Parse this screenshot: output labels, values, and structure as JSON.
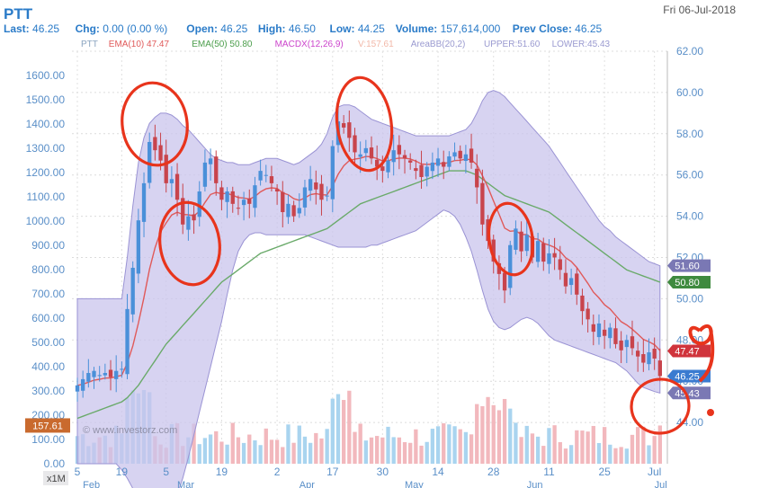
{
  "header": {
    "symbol": "PTT",
    "date": "Fri 06-Jul-2018",
    "stats": [
      {
        "label": "Last:",
        "value": "46.25"
      },
      {
        "label": "Chg:",
        "value": "0.00 (0.00 %)"
      },
      {
        "label": "Open:",
        "value": "46.25"
      },
      {
        "label": "High:",
        "value": "46.50"
      },
      {
        "label": "Low:",
        "value": "44.25"
      },
      {
        "label": "Volume:",
        "value": "157,614,000"
      },
      {
        "label": "Prev Close:",
        "value": "46.25"
      }
    ]
  },
  "legend": [
    {
      "label": "PTT",
      "value": "",
      "color": "#8aa4c0"
    },
    {
      "label": "EMA(10)",
      "value": "47.47",
      "color": "#e05a5a"
    },
    {
      "label": "EMA(50)",
      "value": "50.80",
      "color": "#4c9e4c"
    },
    {
      "label": "MACDX(12,26,9)",
      "value": "",
      "color": "#cc44cc"
    },
    {
      "label": "V:157.61",
      "value": "",
      "color": "#f2b8a8"
    },
    {
      "label": "AreaBB(20,2)",
      "value": "",
      "color": "#9a9ad0"
    },
    {
      "label": "UPPER:51.60",
      "value": "",
      "color": "#9a9ad0"
    },
    {
      "label": "LOWER:45.43",
      "value": "",
      "color": "#9a9ad0"
    }
  ],
  "watermark": "© www.investorz.com",
  "period_label": "x1M",
  "colors": {
    "up": "#4a90d9",
    "down": "#c8444c",
    "vol_up": "#a9d4ef",
    "vol_down": "#f2b8bd",
    "bb_fill": "#c9c4ec",
    "bb_line": "#9a93d4",
    "ema10": "#e05a5a",
    "ema50": "#6aaa6a",
    "annotation": "#e8341c"
  },
  "chart_data": {
    "type": "candlestick",
    "price_axis": {
      "side": "right",
      "min": 42,
      "max": 62,
      "ticks": [
        "44.00",
        "46.00",
        "48.00",
        "50.00",
        "52.00",
        "54.00",
        "56.00",
        "58.00",
        "60.00",
        "62.00"
      ]
    },
    "volume_axis": {
      "side": "left",
      "min": 0,
      "max": 1700,
      "ticks": [
        "0.00",
        "100.00",
        "200.00",
        "300.00",
        "400.00",
        "500.00",
        "600.00",
        "700.00",
        "800.00",
        "900.00",
        "1000.00",
        "1100.00",
        "1200.00",
        "1300.00",
        "1400.00",
        "1500.00",
        "1600.00"
      ]
    },
    "x_ticks": [
      {
        "label": "5",
        "i": 0
      },
      {
        "label": "19",
        "i": 8
      },
      {
        "label": "5",
        "i": 16
      },
      {
        "label": "19",
        "i": 26
      },
      {
        "label": "2",
        "i": 36
      },
      {
        "label": "17",
        "i": 46
      },
      {
        "label": "30",
        "i": 55
      },
      {
        "label": "14",
        "i": 65
      },
      {
        "label": "28",
        "i": 75
      },
      {
        "label": "11",
        "i": 85
      },
      {
        "label": "25",
        "i": 95
      },
      {
        "label": "Jul",
        "i": 104
      }
    ],
    "month_labels": [
      {
        "label": "Feb",
        "i": 1
      },
      {
        "label": "Mar",
        "i": 18
      },
      {
        "label": "Apr",
        "i": 40
      },
      {
        "label": "May",
        "i": 59
      },
      {
        "label": "Jun",
        "i": 81
      },
      {
        "label": "Jul",
        "i": 104
      }
    ],
    "badges": [
      {
        "label": "51.60",
        "value": 51.6,
        "color": "#7a78b4"
      },
      {
        "label": "50.80",
        "value": 50.8,
        "color": "#3f8a3f"
      },
      {
        "label": "47.47",
        "value": 47.47,
        "color": "#d0343c"
      },
      {
        "label": "46.25",
        "value": 46.25,
        "color": "#3a7bd0"
      },
      {
        "label": "45.43",
        "value": 45.43,
        "color": "#7a78b4"
      }
    ],
    "volume_badge": {
      "label": "157.61",
      "value": 157.61,
      "color": "#c96a2e"
    },
    "close": [
      45.8,
      46.1,
      46.4,
      46.5,
      46.3,
      46.4,
      46.2,
      46.5,
      46.6,
      49.5,
      51.5,
      53.8,
      55.6,
      57.6,
      57.2,
      56.7,
      55.6,
      55.8,
      54.8,
      53.6,
      54.0,
      53.8,
      55.2,
      56.6,
      56.8,
      55.6,
      54.8,
      55.2,
      54.6,
      54.4,
      54.8,
      54.6,
      55.5,
      56.2,
      56.0,
      55.6,
      55.2,
      54.2,
      54.6,
      54.0,
      54.4,
      55.4,
      55.8,
      55.3,
      54.8,
      55.0,
      57.4,
      58.6,
      58.3,
      57.8,
      57.1,
      57.0,
      57.3,
      56.8,
      56.4,
      56.2,
      56.7,
      57.2,
      57.0,
      56.8,
      56.6,
      56.2,
      55.9,
      56.4,
      56.6,
      56.8,
      56.4,
      56.9,
      57.1,
      56.8,
      57.0,
      56.6,
      55.4,
      53.6,
      52.8,
      51.8,
      51.2,
      50.4,
      52.6,
      53.4,
      52.3,
      53.1,
      52.0,
      52.8,
      51.8,
      52.2,
      52.0,
      51.4,
      50.6,
      51.0,
      50.2,
      49.4,
      49.0,
      48.4,
      48.8,
      48.2,
      48.6,
      47.8,
      47.5,
      48.0,
      47.6,
      47.2,
      46.9,
      47.4,
      47.1,
      46.25
    ],
    "upper": [
      50.0,
      50.0,
      50.0,
      50.0,
      50.0,
      50.0,
      50.0,
      50.0,
      50.0,
      52.0,
      54.5,
      56.6,
      57.8,
      58.5,
      58.8,
      59.0,
      59.0,
      58.9,
      58.7,
      58.4,
      58.2,
      57.9,
      57.6,
      57.3,
      57.0,
      56.8,
      56.7,
      56.6,
      56.6,
      56.5,
      56.5,
      56.5,
      56.6,
      56.7,
      56.8,
      56.8,
      56.8,
      56.7,
      56.6,
      56.5,
      56.6,
      56.8,
      57.0,
      57.2,
      57.5,
      58.0,
      58.8,
      59.3,
      59.4,
      59.4,
      59.3,
      59.1,
      58.9,
      58.7,
      58.6,
      58.5,
      58.4,
      58.3,
      58.2,
      58.1,
      58.0,
      57.9,
      57.9,
      57.9,
      57.9,
      57.9,
      57.9,
      57.9,
      58.0,
      58.1,
      58.2,
      58.5,
      59.0,
      59.6,
      60.0,
      60.1,
      60.0,
      59.8,
      59.5,
      59.2,
      58.9,
      58.6,
      58.3,
      58.0,
      57.7,
      57.4,
      57.0,
      56.6,
      56.2,
      55.8,
      55.4,
      55.0,
      54.6,
      54.2,
      53.8,
      53.5,
      53.3,
      53.0,
      52.8,
      52.6,
      52.4,
      52.2,
      52.0,
      51.8,
      51.7,
      51.6
    ],
    "lower": [
      42.0,
      42.0,
      42.0,
      42.0,
      42.0,
      42.0,
      42.0,
      42.0,
      41.7,
      41.3,
      40.8,
      40.4,
      40.0,
      39.8,
      39.7,
      39.7,
      39.8,
      40.0,
      40.5,
      41.3,
      42.3,
      43.4,
      44.5,
      45.6,
      46.7,
      47.8,
      48.9,
      50.2,
      51.4,
      52.3,
      52.8,
      53.1,
      53.2,
      53.2,
      53.1,
      53.1,
      53.1,
      53.1,
      53.1,
      53.1,
      53.1,
      53.1,
      53.0,
      52.9,
      52.8,
      52.7,
      52.6,
      52.5,
      52.5,
      52.5,
      52.5,
      52.5,
      52.5,
      52.6,
      52.6,
      52.7,
      52.8,
      52.9,
      53.0,
      53.1,
      53.2,
      53.3,
      53.5,
      53.7,
      53.9,
      54.1,
      54.3,
      54.2,
      54.0,
      53.6,
      53.0,
      52.3,
      51.4,
      50.4,
      49.5,
      48.9,
      48.6,
      48.5,
      48.6,
      48.8,
      49.0,
      49.1,
      49.0,
      48.8,
      48.5,
      48.2,
      48.0,
      47.9,
      47.8,
      47.7,
      47.6,
      47.5,
      47.4,
      47.3,
      47.2,
      47.1,
      47.0,
      46.9,
      46.7,
      46.5,
      46.2,
      45.9,
      45.7,
      45.6,
      45.5,
      45.43
    ],
    "ema50": [
      44.2,
      44.3,
      44.4,
      44.5,
      44.6,
      44.7,
      44.8,
      44.9,
      45.0,
      45.2,
      45.5,
      45.8,
      46.2,
      46.6,
      47.0,
      47.4,
      47.8,
      48.1,
      48.4,
      48.7,
      49.0,
      49.3,
      49.6,
      49.9,
      50.2,
      50.5,
      50.8,
      51.0,
      51.2,
      51.4,
      51.6,
      51.8,
      52.0,
      52.2,
      52.3,
      52.4,
      52.5,
      52.6,
      52.7,
      52.8,
      52.9,
      53.0,
      53.1,
      53.2,
      53.3,
      53.4,
      53.6,
      53.8,
      54.0,
      54.2,
      54.4,
      54.6,
      54.7,
      54.8,
      54.9,
      55.0,
      55.1,
      55.2,
      55.3,
      55.4,
      55.5,
      55.6,
      55.7,
      55.8,
      55.9,
      56.0,
      56.1,
      56.2,
      56.2,
      56.2,
      56.2,
      56.1,
      56.0,
      55.8,
      55.6,
      55.4,
      55.2,
      55.0,
      54.9,
      54.8,
      54.7,
      54.6,
      54.5,
      54.4,
      54.3,
      54.2,
      54.0,
      53.8,
      53.6,
      53.4,
      53.2,
      53.0,
      52.8,
      52.6,
      52.4,
      52.2,
      52.0,
      51.8,
      51.6,
      51.4,
      51.3,
      51.2,
      51.1,
      51.0,
      50.9,
      50.8
    ]
  }
}
